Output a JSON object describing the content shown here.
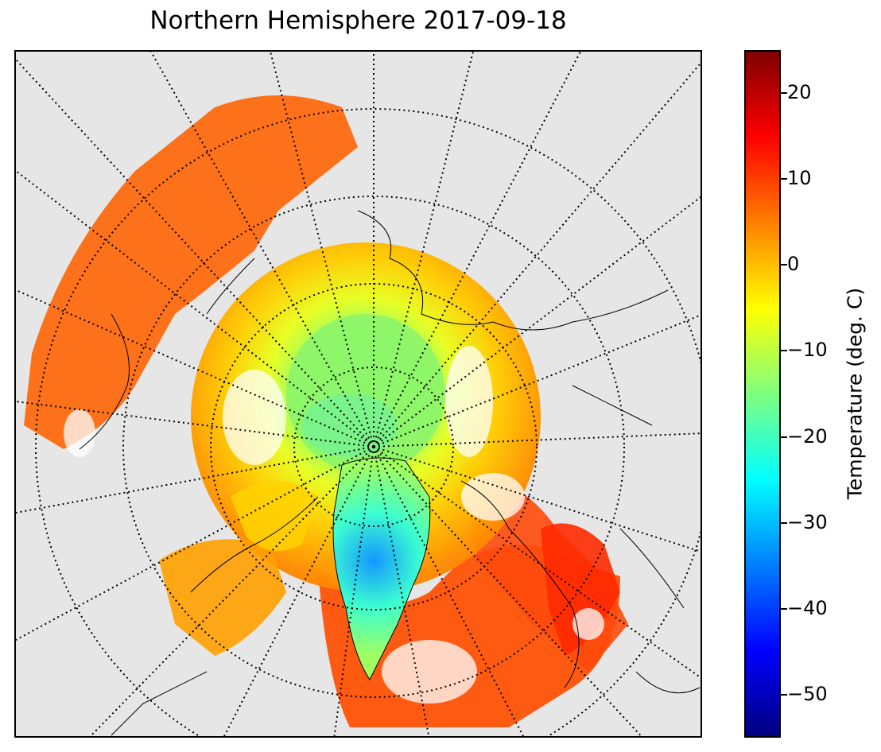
{
  "title": "Northern Hemisphere 2017-09-18",
  "map": {
    "projection": "north-polar-stereographic",
    "variable": "surface temperature",
    "no_data_color": "#e6e6e6",
    "coastline_color": "#000000",
    "graticule": "dotted"
  },
  "colorbar": {
    "label": "Temperature (deg. C)",
    "range": [
      -55,
      25
    ],
    "colormap": "jet",
    "ticks": [
      {
        "value": 20,
        "label": "20"
      },
      {
        "value": 10,
        "label": "10"
      },
      {
        "value": 0,
        "label": "0"
      },
      {
        "value": -10,
        "label": "−10"
      },
      {
        "value": -20,
        "label": "−20"
      },
      {
        "value": -30,
        "label": "−30"
      },
      {
        "value": -40,
        "label": "−40"
      },
      {
        "value": -50,
        "label": "−50"
      }
    ]
  }
}
